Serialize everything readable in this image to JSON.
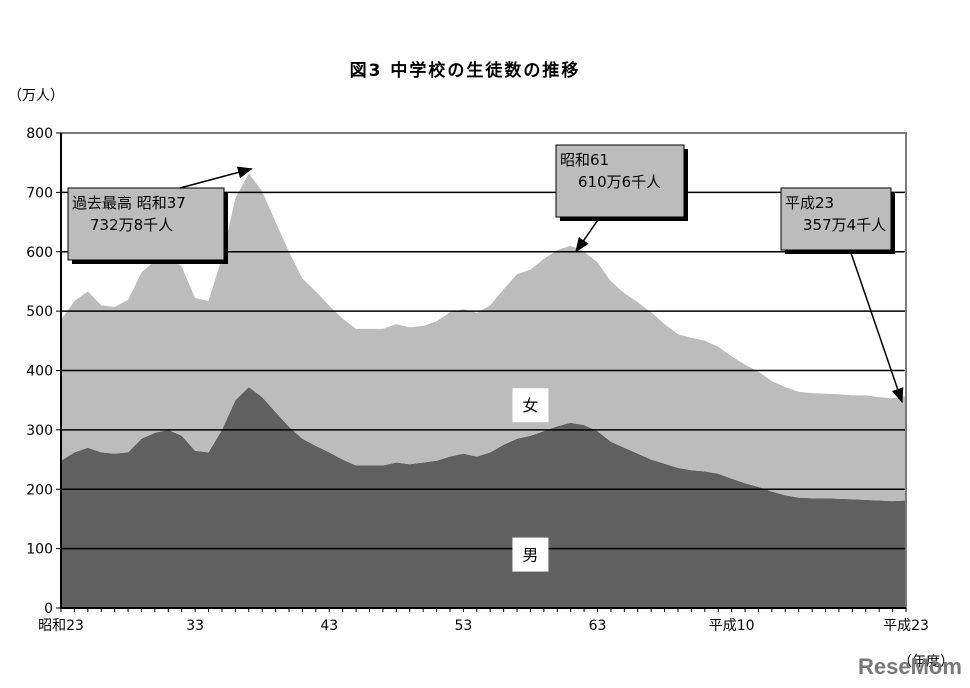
{
  "chart_data": {
    "type": "area",
    "stacked": true,
    "title": "図3 中学校の生徒数の推移",
    "ylabel": "（万人）",
    "xlabel": "（年度）",
    "ylim": [
      0,
      800
    ],
    "yticks": [
      0,
      100,
      200,
      300,
      400,
      500,
      600,
      700,
      800
    ],
    "grid": "horizontal",
    "x": [
      23,
      24,
      25,
      26,
      27,
      28,
      29,
      30,
      31,
      32,
      33,
      34,
      35,
      36,
      37,
      38,
      39,
      40,
      41,
      42,
      43,
      44,
      45,
      46,
      47,
      48,
      49,
      50,
      51,
      52,
      53,
      54,
      55,
      56,
      57,
      58,
      59,
      60,
      61,
      62,
      63,
      64,
      65,
      66,
      67,
      68,
      69,
      70,
      71,
      72,
      73,
      74,
      75,
      76,
      77,
      78,
      79,
      80,
      81,
      82,
      83,
      84,
      85,
      86
    ],
    "xticks": [
      {
        "x": 23,
        "label": "昭和23"
      },
      {
        "x": 33,
        "label": "33"
      },
      {
        "x": 43,
        "label": "43"
      },
      {
        "x": 53,
        "label": "53"
      },
      {
        "x": 63,
        "label": "63"
      },
      {
        "x": 73,
        "label": "平成10"
      },
      {
        "x": 86,
        "label": "平成23"
      }
    ],
    "series": [
      {
        "name": "男",
        "color": "#606060",
        "values": [
          248,
          262,
          270,
          262,
          260,
          262,
          285,
          295,
          300,
          290,
          265,
          262,
          300,
          350,
          372,
          355,
          330,
          305,
          285,
          273,
          262,
          250,
          240,
          240,
          240,
          245,
          242,
          245,
          248,
          255,
          260,
          255,
          262,
          275,
          285,
          290,
          298,
          306,
          312,
          308,
          298,
          280,
          270,
          260,
          250,
          243,
          236,
          232,
          230,
          226,
          218,
          210,
          204,
          196,
          190,
          186,
          185,
          185,
          184,
          183,
          182,
          181,
          180,
          181
        ]
      },
      {
        "name": "女",
        "color": "#bcbcbc",
        "values": [
          237,
          255,
          263,
          248,
          247,
          257,
          280,
          290,
          295,
          285,
          257,
          255,
          290,
          340,
          360,
          347,
          320,
          295,
          270,
          260,
          247,
          237,
          230,
          230,
          230,
          233,
          231,
          230,
          235,
          243,
          243,
          242,
          248,
          262,
          277,
          280,
          290,
          297,
          298,
          292,
          284,
          270,
          260,
          255,
          248,
          235,
          225,
          223,
          220,
          214,
          206,
          200,
          194,
          186,
          182,
          178,
          177,
          176,
          176,
          175,
          176,
          174,
          173,
          176
        ]
      }
    ],
    "annotations": [
      {
        "lines": [
          "過去最高 昭和37",
          "732万8千人"
        ],
        "x": 37,
        "y": 732.8
      },
      {
        "lines": [
          "昭和61",
          "610万6千人"
        ],
        "x": 61,
        "y": 610.6
      },
      {
        "lines": [
          "平成23",
          "357万4千人"
        ],
        "x": 86,
        "y": 357.4
      }
    ]
  },
  "watermark": "ReseMom"
}
